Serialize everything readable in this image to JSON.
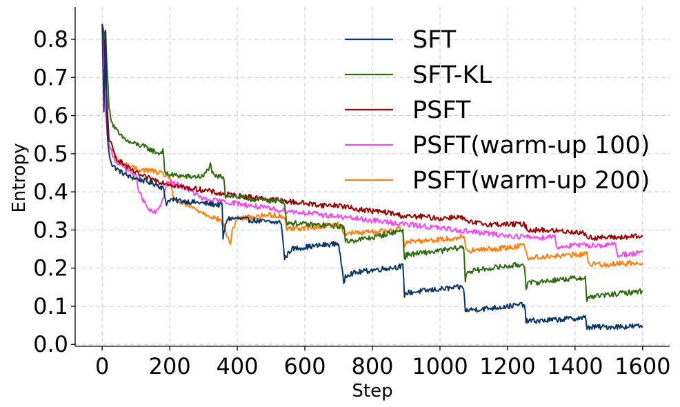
{
  "chart_data": {
    "type": "line",
    "title": "",
    "xlabel": "Step",
    "ylabel": "Entropy",
    "xlim": [
      -80,
      1680
    ],
    "ylim": [
      -0.005,
      0.885
    ],
    "xticks": [
      0,
      200,
      400,
      600,
      800,
      1000,
      1200,
      1400,
      1600
    ],
    "yticks": [
      0.0,
      0.1,
      0.2,
      0.3,
      0.4,
      0.5,
      0.6,
      0.7,
      0.8
    ],
    "xtick_labels": [
      "0",
      "200",
      "400",
      "600",
      "800",
      "1000",
      "1200",
      "1400",
      "1600"
    ],
    "ytick_labels": [
      "0.0",
      "0.1",
      "0.2",
      "0.3",
      "0.4",
      "0.5",
      "0.6",
      "0.7",
      "0.8"
    ],
    "grid": true,
    "legend_position": "top-right",
    "series": [
      {
        "name": "SFT",
        "color": "#0b3566",
        "x": [
          0,
          5,
          10,
          15,
          20,
          30,
          50,
          80,
          120,
          160,
          180,
          190,
          200,
          250,
          300,
          355,
          358,
          370,
          400,
          450,
          500,
          530,
          540,
          560,
          600,
          650,
          700,
          715,
          720,
          730,
          800,
          890,
          895,
          900,
          950,
          1000,
          1070,
          1075,
          1080,
          1150,
          1250,
          1255,
          1260,
          1300,
          1430,
          1435,
          1440,
          1500,
          1600
        ],
        "y": [
          0.84,
          0.61,
          0.82,
          0.55,
          0.5,
          0.47,
          0.455,
          0.44,
          0.43,
          0.42,
          0.41,
          0.37,
          0.38,
          0.375,
          0.37,
          0.365,
          0.28,
          0.33,
          0.33,
          0.325,
          0.32,
          0.32,
          0.225,
          0.25,
          0.255,
          0.26,
          0.265,
          0.16,
          0.18,
          0.185,
          0.195,
          0.205,
          0.13,
          0.135,
          0.14,
          0.145,
          0.15,
          0.085,
          0.09,
          0.095,
          0.105,
          0.06,
          0.062,
          0.062,
          0.07,
          0.045,
          0.045,
          0.046,
          0.048
        ]
      },
      {
        "name": "SFT-KL",
        "color": "#2e6b0e",
        "x": [
          0,
          5,
          10,
          20,
          30,
          50,
          80,
          120,
          170,
          180,
          185,
          200,
          250,
          300,
          320,
          330,
          360,
          365,
          380,
          450,
          540,
          545,
          600,
          700,
          715,
          720,
          800,
          890,
          895,
          900,
          1000,
          1070,
          1075,
          1080,
          1150,
          1250,
          1255,
          1260,
          1350,
          1430,
          1435,
          1440,
          1500,
          1600
        ],
        "y": [
          0.84,
          0.8,
          0.82,
          0.62,
          0.58,
          0.55,
          0.53,
          0.52,
          0.5,
          0.51,
          0.45,
          0.445,
          0.44,
          0.44,
          0.47,
          0.44,
          0.44,
          0.39,
          0.39,
          0.38,
          0.375,
          0.32,
          0.315,
          0.31,
          0.31,
          0.27,
          0.28,
          0.3,
          0.22,
          0.235,
          0.245,
          0.255,
          0.17,
          0.19,
          0.2,
          0.21,
          0.15,
          0.16,
          0.17,
          0.175,
          0.11,
          0.125,
          0.13,
          0.14
        ]
      },
      {
        "name": "PSFT",
        "color": "#990000",
        "x": [
          0,
          5,
          10,
          20,
          40,
          80,
          120,
          160,
          200,
          250,
          300,
          350,
          400,
          450,
          500,
          550,
          600,
          650,
          700,
          750,
          800,
          850,
          900,
          950,
          1000,
          1050,
          1070,
          1080,
          1150,
          1250,
          1260,
          1300,
          1400,
          1430,
          1440,
          1500,
          1600
        ],
        "y": [
          0.84,
          0.82,
          0.7,
          0.54,
          0.49,
          0.46,
          0.44,
          0.43,
          0.42,
          0.41,
          0.405,
          0.395,
          0.39,
          0.385,
          0.38,
          0.375,
          0.37,
          0.365,
          0.365,
          0.355,
          0.35,
          0.345,
          0.335,
          0.335,
          0.33,
          0.335,
          0.33,
          0.32,
          0.315,
          0.315,
          0.3,
          0.3,
          0.295,
          0.29,
          0.28,
          0.28,
          0.283
        ]
      },
      {
        "name": "PSFT(warm-up 100)",
        "color": "#f54af0",
        "x": [
          0,
          5,
          10,
          20,
          40,
          80,
          100,
          110,
          120,
          140,
          160,
          180,
          190,
          200,
          250,
          300,
          400,
          500,
          600,
          700,
          800,
          900,
          1000,
          1100,
          1200,
          1300,
          1340,
          1345,
          1400,
          1500,
          1520,
          1525,
          1600
        ],
        "y": [
          0.84,
          0.78,
          0.6,
          0.52,
          0.48,
          0.455,
          0.44,
          0.4,
          0.38,
          0.35,
          0.345,
          0.38,
          0.42,
          0.425,
          0.41,
          0.38,
          0.37,
          0.355,
          0.345,
          0.335,
          0.325,
          0.315,
          0.305,
          0.295,
          0.285,
          0.28,
          0.285,
          0.255,
          0.26,
          0.26,
          0.265,
          0.235,
          0.24
        ]
      },
      {
        "name": "PSFT(warm-up 200)",
        "color": "#ff7f0e",
        "x": [
          0,
          5,
          10,
          20,
          50,
          100,
          150,
          200,
          210,
          250,
          300,
          350,
          360,
          380,
          385,
          395,
          400,
          450,
          500,
          540,
          545,
          600,
          650,
          700,
          710,
          715,
          800,
          870,
          880,
          890,
          895,
          900,
          1000,
          1060,
          1065,
          1070,
          1080,
          1150,
          1220,
          1240,
          1245,
          1250,
          1260,
          1300,
          1420,
          1430,
          1435,
          1440,
          1500,
          1600
        ],
        "y": [
          0.84,
          0.8,
          0.6,
          0.52,
          0.48,
          0.46,
          0.455,
          0.44,
          0.38,
          0.365,
          0.345,
          0.325,
          0.31,
          0.26,
          0.3,
          0.32,
          0.33,
          0.335,
          0.34,
          0.335,
          0.305,
          0.305,
          0.31,
          0.315,
          0.31,
          0.29,
          0.295,
          0.3,
          0.305,
          0.3,
          0.26,
          0.27,
          0.275,
          0.28,
          0.285,
          0.285,
          0.245,
          0.25,
          0.255,
          0.26,
          0.265,
          0.265,
          0.225,
          0.23,
          0.235,
          0.24,
          0.245,
          0.21,
          0.21,
          0.215
        ]
      }
    ]
  }
}
